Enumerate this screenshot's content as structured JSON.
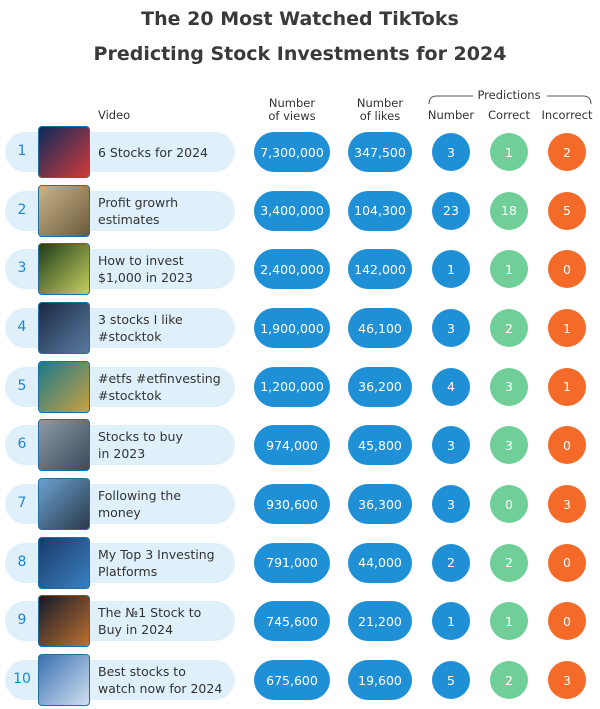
{
  "header": {
    "title_lines": [
      "The 20 Most Watched TikToks",
      "Predicting Stock Investments for 2024"
    ]
  },
  "table": {
    "columns": {
      "video": "Video",
      "views": [
        "Number",
        "of views"
      ],
      "likes": [
        "Number",
        "of likes"
      ],
      "group": "Predictions",
      "number": "Number",
      "correct": "Correct",
      "incorrect": "Incorrect"
    },
    "rows": [
      {
        "rank": "1",
        "video": [
          "6 Stocks for 2024"
        ],
        "views": "7,300,000",
        "likes": "347,500",
        "number": "3",
        "correct": "1",
        "incorrect": "2"
      },
      {
        "rank": "2",
        "video": [
          "Profit growrh",
          "estimates"
        ],
        "views": "3,400,000",
        "likes": "104,300",
        "number": "23",
        "correct": "18",
        "incorrect": "5"
      },
      {
        "rank": "3",
        "video": [
          "How to invest",
          "$1,000 in 2023"
        ],
        "views": "2,400,000",
        "likes": "142,000",
        "number": "1",
        "correct": "1",
        "incorrect": "0"
      },
      {
        "rank": "4",
        "video": [
          "3 stocks I like",
          "#stocktok"
        ],
        "views": "1,900,000",
        "likes": "46,100",
        "number": "3",
        "correct": "2",
        "incorrect": "1"
      },
      {
        "rank": "5",
        "video": [
          "#etfs #etfinvesting",
          "#stocktok"
        ],
        "views": "1,200,000",
        "likes": "36,200",
        "number": "4",
        "correct": "3",
        "incorrect": "1"
      },
      {
        "rank": "6",
        "video": [
          "Stocks to buy",
          "in 2023"
        ],
        "views": "974,000",
        "likes": "45,800",
        "number": "3",
        "correct": "3",
        "incorrect": "0"
      },
      {
        "rank": "7",
        "video": [
          "Following the",
          "money"
        ],
        "views": "930,600",
        "likes": "36,300",
        "number": "3",
        "correct": "0",
        "incorrect": "3"
      },
      {
        "rank": "8",
        "video": [
          "My Top 3 Investing",
          "Platforms"
        ],
        "views": "791,000",
        "likes": "44,000",
        "number": "2",
        "correct": "2",
        "incorrect": "0"
      },
      {
        "rank": "9",
        "video": [
          "The №1 Stock to",
          "Buy in 2024"
        ],
        "views": "745,600",
        "likes": "21,200",
        "number": "1",
        "correct": "1",
        "incorrect": "0"
      },
      {
        "rank": "10",
        "video": [
          "Best stocks to",
          "watch now for 2024"
        ],
        "views": "675,600",
        "likes": "19,600",
        "number": "5",
        "correct": "2",
        "incorrect": "3"
      }
    ]
  }
}
